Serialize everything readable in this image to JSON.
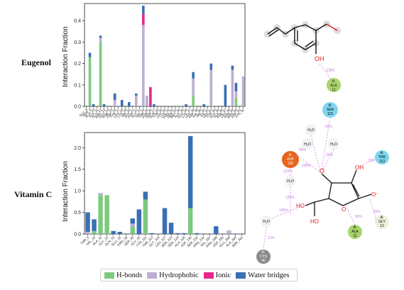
{
  "labels": {
    "eugenol": "Eugenol",
    "vitaminc": "Vitamin C"
  },
  "colors": {
    "hbond": "#7fc97f",
    "hydrophobic": "#beaed4",
    "ionic": "#e7298a",
    "water": "#3a6fb5"
  },
  "legend": [
    {
      "key": "hbond",
      "label": "H-bonds"
    },
    {
      "key": "hydrophobic",
      "label": "Hydrophobic"
    },
    {
      "key": "ionic",
      "label": "Ionic"
    },
    {
      "key": "water",
      "label": "Water bridges"
    }
  ],
  "chart_data": [
    {
      "type": "bar",
      "stacked": true,
      "title": "",
      "xlabel": "",
      "ylabel": "Interaction Fraction",
      "ylim": [
        0,
        0.48
      ],
      "yticks": [
        0.0,
        0.1,
        0.2,
        0.3,
        0.4
      ],
      "categories": [
        "GLY_8",
        "SER_9",
        "ALA_10",
        "ALA_11",
        "GLU_12",
        "ARG_13",
        "GLU_14",
        "PHE_15",
        "ASP_16",
        "TYR_17",
        "LEU_18",
        "LYS_19",
        "HIS_20",
        "GLY_21",
        "ASP_22",
        "GLY_23",
        "VAL_24",
        "THR_25",
        "ASN_26",
        "SER_27",
        "GLN_28",
        "TYR_29",
        "LEU_30",
        "LYS_31",
        "PRO_32",
        "SER_33",
        "MET_34",
        "ALA_35",
        "GLU_36",
        "LYS_37",
        "LEU_38",
        "ASP_39",
        "VAL_40",
        "HIS_41",
        "ILE_42",
        "LEU_43",
        "TYR_44",
        "GLU_45",
        "ALA_46",
        "PHE_47",
        "LEU_48",
        "ASN_49",
        "ARG_50",
        "ASP_51",
        "LYS_52"
      ],
      "series": [
        {
          "name": "H-bonds",
          "values": [
            0.0,
            0.23,
            0.0,
            0.0,
            0.3,
            0.0,
            0.0,
            0.0,
            0.0,
            0.0,
            0.0,
            0.0,
            0.0,
            0.0,
            0.0,
            0.0,
            0.0,
            0.0,
            0.0,
            0.0,
            0.0,
            0.0,
            0.0,
            0.0,
            0.0,
            0.0,
            0.0,
            0.0,
            0.0,
            0.0,
            0.05,
            0.0,
            0.0,
            0.0,
            0.0,
            0.0,
            0.0,
            0.0,
            0.0,
            0.0,
            0.0,
            0.0,
            0.04,
            0.0,
            0.0
          ]
        },
        {
          "name": "Hydrophobic",
          "values": [
            0.0,
            0.0,
            0.0,
            0.0,
            0.02,
            0.0,
            0.0,
            0.0,
            0.03,
            0.0,
            0.0,
            0.0,
            0.0,
            0.0,
            0.05,
            0.0,
            0.38,
            0.05,
            0.0,
            0.0,
            0.0,
            0.0,
            0.0,
            0.0,
            0.0,
            0.0,
            0.0,
            0.0,
            0.0,
            0.0,
            0.08,
            0.0,
            0.0,
            0.0,
            0.0,
            0.17,
            0.0,
            0.0,
            0.0,
            0.0,
            0.0,
            0.17,
            0.03,
            0.0,
            0.14
          ]
        },
        {
          "name": "Ionic",
          "values": [
            0.0,
            0.0,
            0.0,
            0.0,
            0.0,
            0.0,
            0.0,
            0.0,
            0.0,
            0.0,
            0.0,
            0.0,
            0.0,
            0.0,
            0.0,
            0.0,
            0.05,
            0.0,
            0.09,
            0.0,
            0.0,
            0.0,
            0.0,
            0.0,
            0.0,
            0.0,
            0.0,
            0.0,
            0.0,
            0.0,
            0.0,
            0.0,
            0.0,
            0.0,
            0.0,
            0.0,
            0.0,
            0.0,
            0.0,
            0.0,
            0.0,
            0.0,
            0.0,
            0.0,
            0.0
          ]
        },
        {
          "name": "Water bridges",
          "values": [
            0.0,
            0.02,
            0.01,
            0.0,
            0.01,
            0.01,
            0.0,
            0.0,
            0.03,
            0.0,
            0.03,
            0.0,
            0.02,
            0.0,
            0.01,
            0.0,
            0.04,
            0.0,
            0.0,
            0.01,
            0.0,
            0.0,
            0.0,
            0.0,
            0.0,
            0.0,
            0.0,
            0.0,
            0.01,
            0.0,
            0.03,
            0.0,
            0.0,
            0.01,
            0.0,
            0.03,
            0.0,
            0.0,
            0.0,
            0.1,
            0.0,
            0.02,
            0.04,
            0.0,
            0.0
          ]
        }
      ]
    },
    {
      "type": "bar",
      "stacked": true,
      "title": "",
      "xlabel": "",
      "ylabel": "Interaction Fraction",
      "ylim": [
        0,
        2.35
      ],
      "yticks": [
        0.0,
        0.5,
        1.0,
        1.5,
        2.0
      ],
      "categories": [
        "THR_5",
        "VAL_10",
        "ALA_11",
        "GLY_12",
        "GLN_31",
        "GLU_32",
        "PRO_34",
        "SER_40",
        "GLY_41",
        "TYR_111",
        "THR_113",
        "GLY_114",
        "LEU_117",
        "SER_123",
        "SER_124",
        "ALA_126",
        "ASP_130",
        "SER_131",
        "PRO_132",
        "VAL_297",
        "PRO_298",
        "ASP_355",
        "GLU_358",
        "ALA_360",
        "SER_361"
      ],
      "series": [
        {
          "name": "H-bonds",
          "values": [
            0.0,
            0.07,
            0.9,
            0.9,
            0.0,
            0.0,
            0.0,
            0.17,
            0.0,
            0.8,
            0.0,
            0.0,
            0.0,
            0.0,
            0.0,
            0.0,
            0.6,
            0.0,
            0.0,
            0.0,
            0.0,
            0.0,
            0.0,
            0.0,
            0.0
          ]
        },
        {
          "name": "Hydrophobic",
          "values": [
            0.05,
            0.0,
            0.05,
            0.0,
            0.0,
            0.0,
            0.0,
            0.07,
            0.0,
            0.0,
            0.0,
            0.0,
            0.0,
            0.0,
            0.0,
            0.0,
            0.0,
            0.0,
            0.0,
            0.0,
            0.0,
            0.0,
            0.08,
            0.0,
            0.0
          ]
        },
        {
          "name": "Ionic",
          "values": [
            0.0,
            0.0,
            0.0,
            0.0,
            0.0,
            0.0,
            0.0,
            0.0,
            0.0,
            0.0,
            0.0,
            0.0,
            0.0,
            0.0,
            0.0,
            0.0,
            0.0,
            0.0,
            0.0,
            0.0,
            0.0,
            0.0,
            0.0,
            0.0,
            0.0
          ]
        },
        {
          "name": "Water bridges",
          "values": [
            0.45,
            0.27,
            0.0,
            0.0,
            0.07,
            0.05,
            0.0,
            0.12,
            0.57,
            0.18,
            0.02,
            0.0,
            0.6,
            0.26,
            0.02,
            0.02,
            1.67,
            0.02,
            0.0,
            0.0,
            0.18,
            0.0,
            0.0,
            0.0,
            0.0
          ]
        }
      ]
    }
  ],
  "eugenol_diagram": {
    "atom_label": "OH",
    "percent": "13%",
    "residue": {
      "name": "A:",
      "res": "ALA",
      "num": "11"
    }
  },
  "vitc_diagram": {
    "residues": [
      {
        "id": "ser",
        "chain": "A:",
        "res": "SER",
        "num": "115"
      },
      {
        "id": "asp",
        "chain": "A:",
        "res": "ASP",
        "num": "130"
      },
      {
        "id": "thr",
        "chain": "A:",
        "res": "THR",
        "num": "113"
      },
      {
        "id": "gly",
        "chain": "A:",
        "res": "GLY",
        "num": "12"
      },
      {
        "id": "ala",
        "chain": "A:",
        "res": "ALA",
        "num": "11"
      },
      {
        "id": "cys",
        "chain": "A:",
        "res": "CYS",
        "num": "40"
      }
    ],
    "waters": [
      "H₂O",
      "H₂O",
      "H₂O",
      "H₂O",
      "H₂O"
    ],
    "percents": [
      "65%",
      "68%",
      "106%",
      "34%",
      "122%",
      "120%",
      "31%",
      "90%",
      "93%",
      "100%",
      "31%"
    ],
    "atoms": [
      "O",
      "OH",
      "O",
      "O⁻",
      "HO",
      "HO"
    ]
  }
}
